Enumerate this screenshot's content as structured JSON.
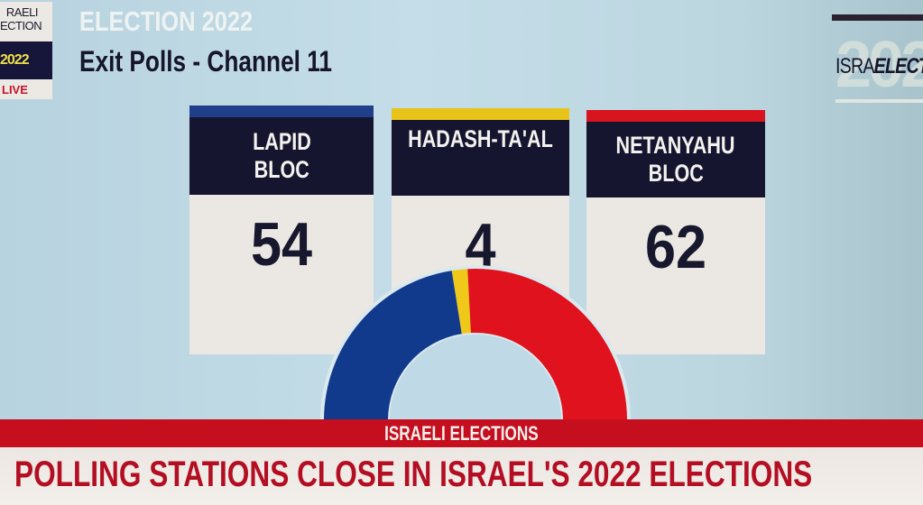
{
  "badge": {
    "line1": "RAELI",
    "line2": "ECTION",
    "year": "2022",
    "live": "LIVE"
  },
  "header": {
    "title": "ELECTION 2022",
    "subtitle": "Exit Polls - Channel 11"
  },
  "logo": {
    "text_light": "ISRA",
    "text_bold": "ELECT",
    "bg_year": "202"
  },
  "blocs": [
    {
      "name_line1": "LAPID",
      "name_line2": "BLOC",
      "seats": "54",
      "color": "#123a8c"
    },
    {
      "name_line1": "HADASH-TA'AL",
      "name_line2": "",
      "seats": "4",
      "color": "#f0c81a"
    },
    {
      "name_line1": "NETANYAHU",
      "name_line2": "BLOC",
      "seats": "62",
      "color": "#e0121e"
    }
  ],
  "banner": {
    "label": "ISRAELI ELECTIONS"
  },
  "ticker": {
    "headline": "POLLING STATIONS CLOSE IN ISRAEL'S 2022 ELECTIONS"
  },
  "chart_data": {
    "type": "pie",
    "subtype": "semicircle-donut",
    "title": "Exit Polls - Channel 11",
    "categories": [
      "LAPID BLOC",
      "HADASH-TA'AL",
      "NETANYAHU BLOC"
    ],
    "values": [
      54,
      4,
      62
    ],
    "total": 120,
    "colors": [
      "#123a8c",
      "#f0c81a",
      "#e0121e"
    ],
    "legend": "none (values shown in cards above chart)"
  }
}
